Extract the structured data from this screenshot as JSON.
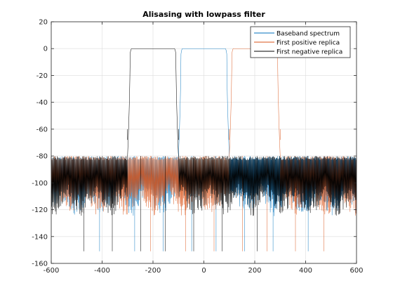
{
  "chart_data": {
    "type": "line",
    "title": "Alisasing with lowpass filter",
    "xlabel": "",
    "ylabel": "",
    "xlim": [
      -600,
      600
    ],
    "ylim": [
      -160,
      20
    ],
    "xticks": [
      -600,
      -400,
      -200,
      0,
      200,
      400,
      600
    ],
    "yticks": [
      20,
      0,
      -20,
      -40,
      -60,
      -80,
      -100,
      -120,
      -140,
      -160
    ],
    "grid": true,
    "legend_position": "top-right",
    "series": [
      {
        "name": "Baseband spectrum",
        "color": "#0072BD",
        "center": 0,
        "passband_edge": 90,
        "stopband_edge": 100,
        "passband_level": 0,
        "stopband_ceiling": -80,
        "stopband_floor": -125,
        "deep_nulls": [
          -410,
          -272,
          -160,
          -48,
          48,
          160,
          272,
          410
        ],
        "deep_null_level": -151
      },
      {
        "name": "First positive replica",
        "color": "#D95319",
        "center": 200,
        "passband_edge": 90,
        "stopband_edge": 100,
        "passband_level": 0,
        "stopband_ceiling": -80,
        "stopband_floor": -125,
        "deep_nulls": [
          -210,
          -72,
          40,
          152,
          248,
          360,
          472
        ],
        "deep_null_level": -151
      },
      {
        "name": "First negative replica",
        "color": "#000000",
        "center": -200,
        "passband_edge": 90,
        "stopband_edge": 100,
        "passband_level": 0,
        "stopband_ceiling": -80,
        "stopband_floor": -125,
        "deep_nulls": [
          -472,
          -360,
          -248,
          -152,
          -40,
          72,
          210
        ],
        "deep_null_level": -151
      }
    ]
  }
}
